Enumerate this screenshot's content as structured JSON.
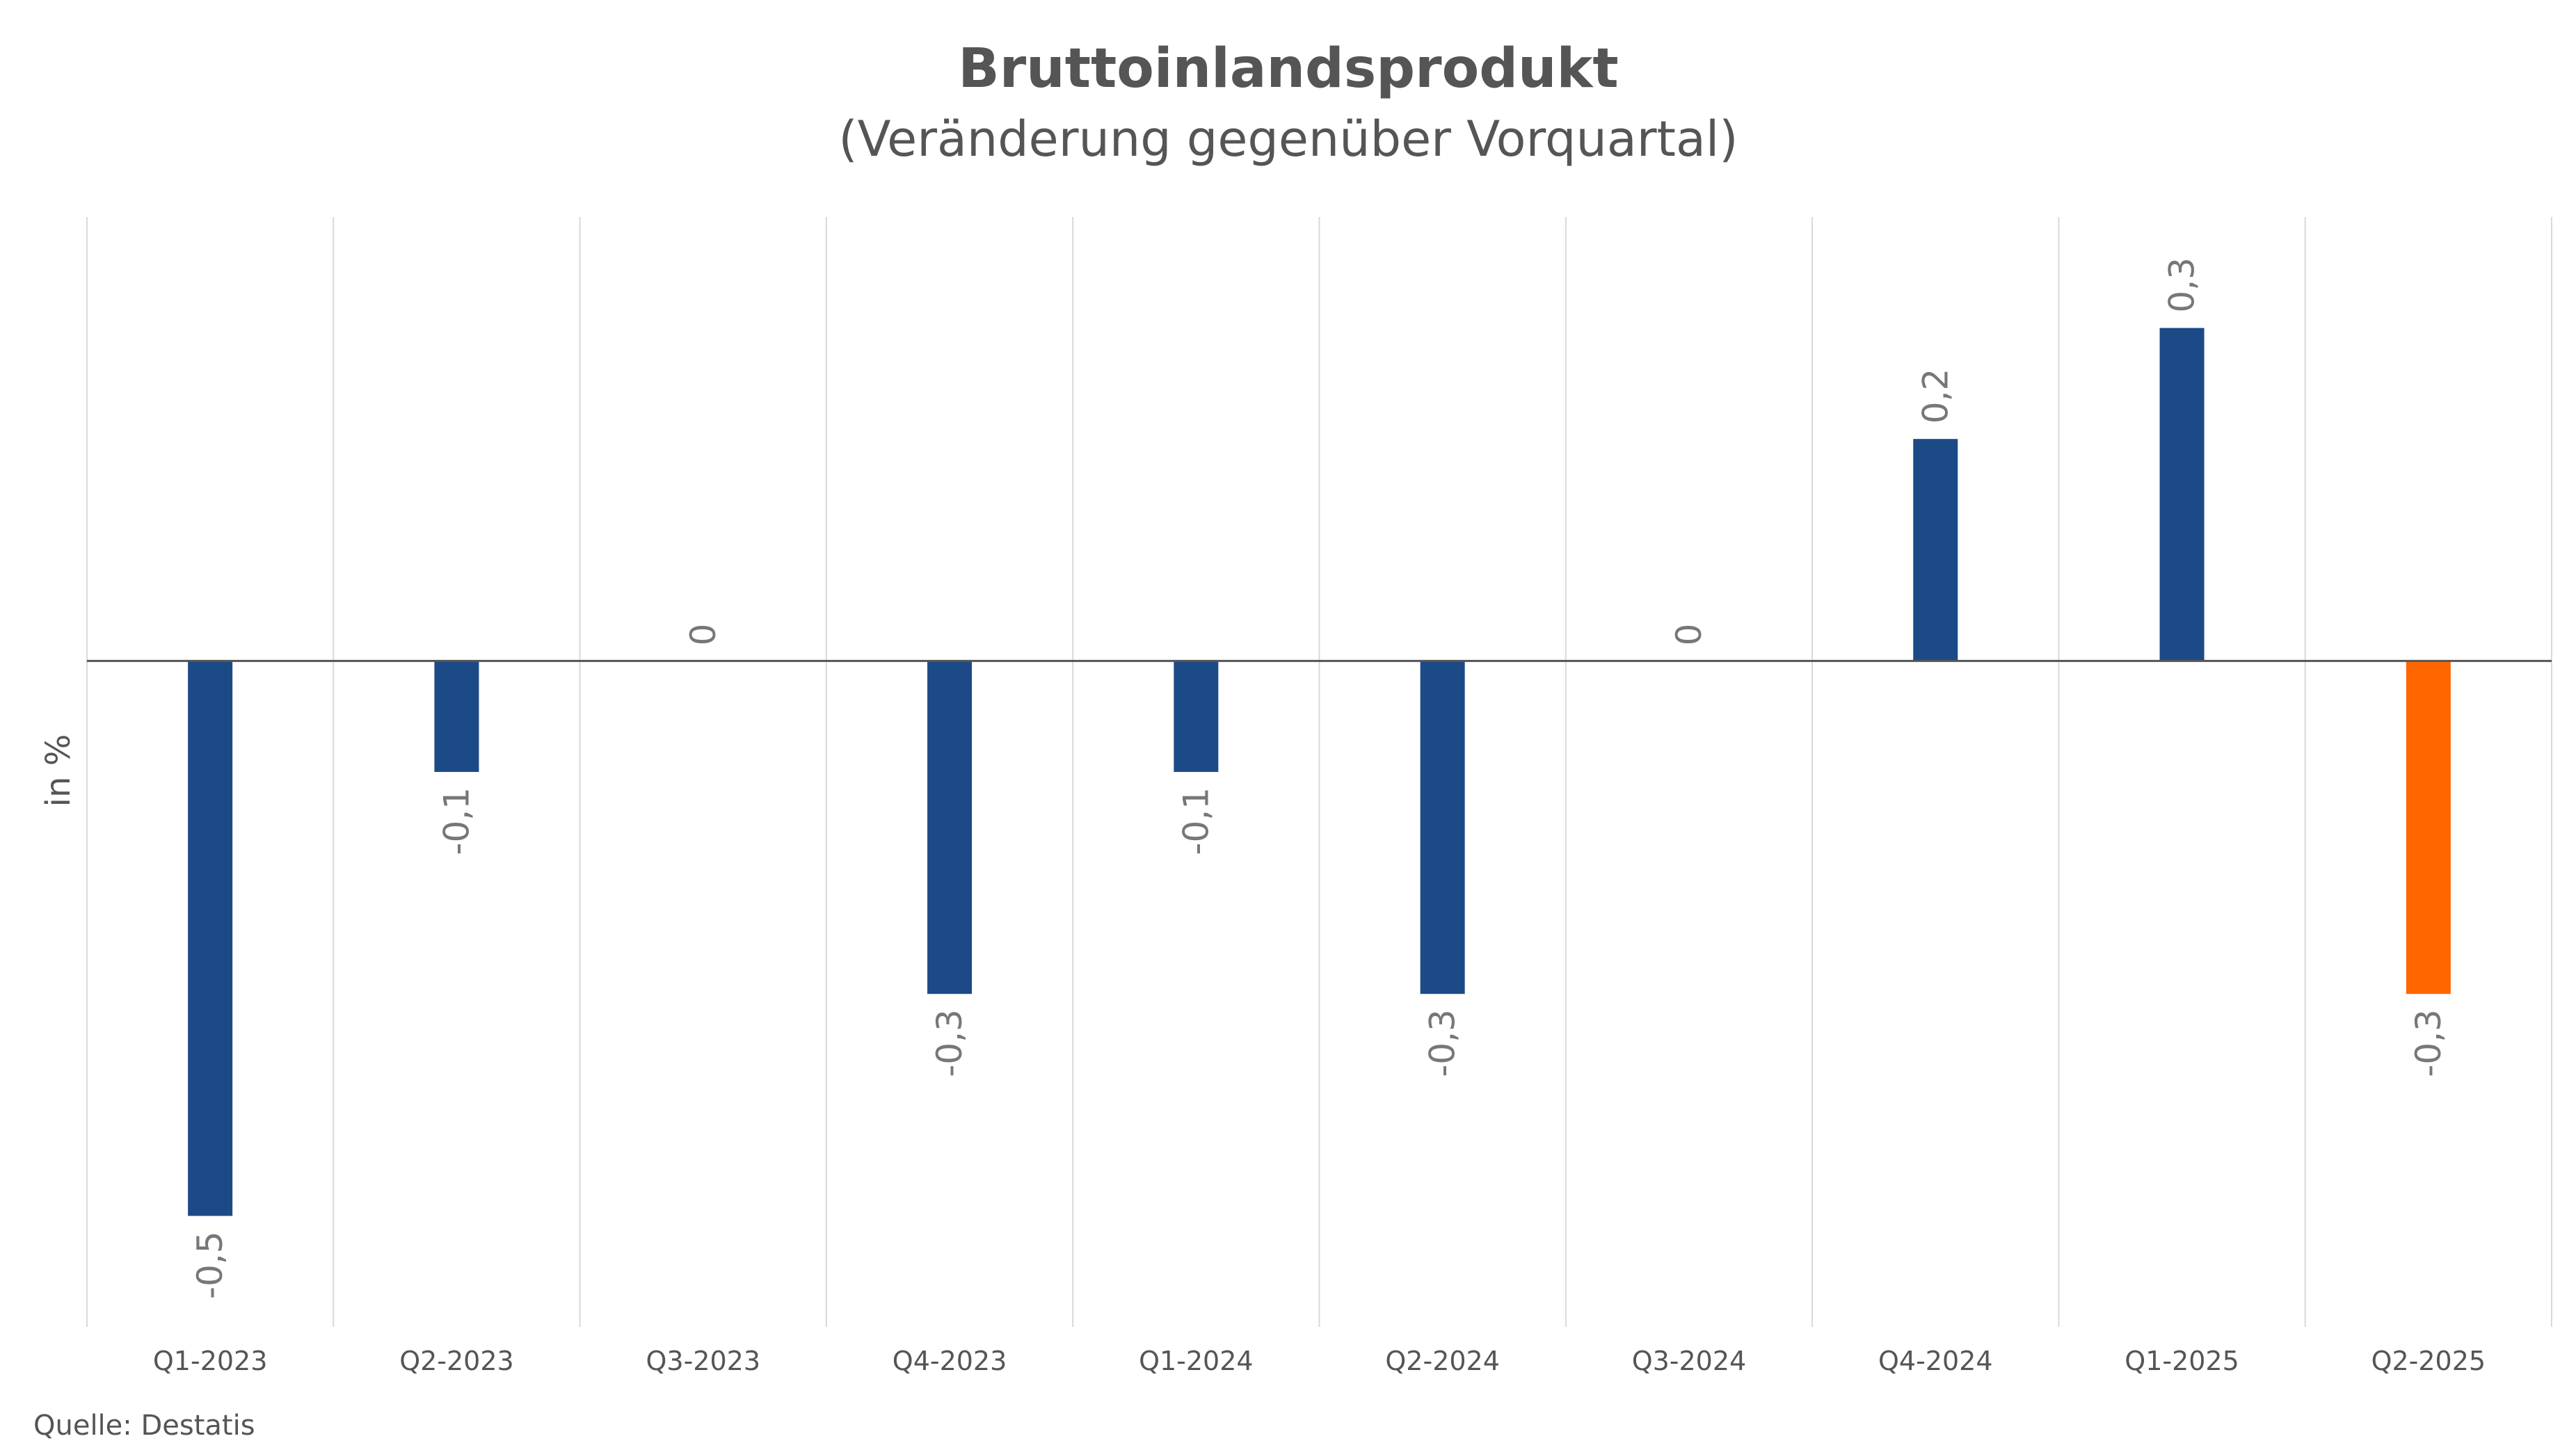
{
  "chart_data": {
    "type": "bar",
    "title": "Bruttoinlandsprodukt",
    "subtitle": "(Veränderung gegenüber Vorquartal)",
    "ylabel": "in %",
    "xlabel": "",
    "categories": [
      "Q1-2023",
      "Q2-2023",
      "Q3-2023",
      "Q4-2023",
      "Q1-2024",
      "Q2-2024",
      "Q3-2024",
      "Q4-2024",
      "Q1-2025",
      "Q2-2025"
    ],
    "values": [
      -0.5,
      -0.1,
      0,
      -0.3,
      -0.1,
      -0.3,
      0,
      0.2,
      0.3,
      -0.3
    ],
    "value_labels": [
      "-0,5",
      "-0,1",
      "0",
      "-0,3",
      "-0,1",
      "-0,3",
      "0",
      "0,2",
      "0,3",
      "-0,3"
    ],
    "ylim": [
      -0.6,
      0.4
    ],
    "grid": "vertical",
    "legend": "none",
    "colors": {
      "default": "#1c4a87",
      "highlight": "#ff6600",
      "highlight_index": 9,
      "grid": "#d9d9d9",
      "axis": "#555555"
    },
    "source": "Quelle: Destatis"
  }
}
